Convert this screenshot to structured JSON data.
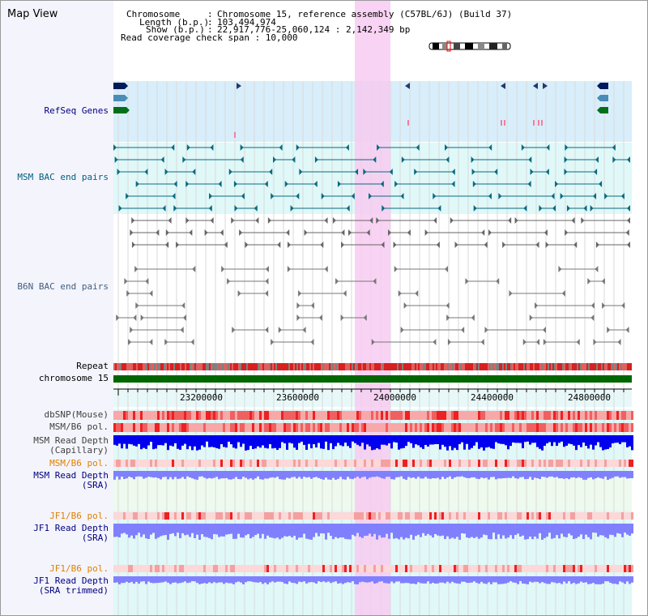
{
  "title": "Map View",
  "header": {
    "rows": [
      {
        "key": "Chromosome",
        "value": "Chromosome 15, reference assembly (C57BL/6J) (Build 37)"
      },
      {
        "key": "Length (b.p.)",
        "value": "103,494,974"
      },
      {
        "key": "Show (b.p.)",
        "value": "22,917,776-25,060,124 : 2,142,349 bp"
      }
    ],
    "separator": ":",
    "coverage": "Read coverage check span : 10,000"
  },
  "labels": {
    "refseq": "RefSeq Genes",
    "msm_bac": "MSM BAC end pairs",
    "b6n_bac": "B6N BAC end pairs",
    "repeat": "Repeat",
    "chromosome": "chromosome 15",
    "dbsnp": "dbSNP(Mouse)",
    "msm_pol": "MSM/B6 pol.",
    "msm_depth_cap_1": "MSM Read Depth",
    "msm_depth_cap_2": "(Capillary)",
    "msm_pol_sra": "MSM/B6 pol.",
    "msm_depth_sra_1": "MSM Read Depth",
    "msm_depth_sra_2": "(SRA)",
    "jf1_pol": "JF1/B6 pol.",
    "jf1_depth_1": "JF1 Read Depth",
    "jf1_depth_2": "(SRA)",
    "jf1_pol_trim": "JF1/B6 pol.",
    "jf1_depth_trim_1": "JF1 Read Depth",
    "jf1_depth_trim_2": "(SRA trimmed)"
  },
  "axis": {
    "ticks": [
      "23200000",
      "23600000",
      "24000000",
      "24400000",
      "24800000"
    ]
  },
  "colors": {
    "highlight": "#f7c8f0",
    "refseq_bg": "#d8eefa",
    "msm_bg": "#e0f8f8",
    "navy_label": "#000080",
    "orange_label": "#e08000",
    "teal_label": "#006080",
    "chrom_green": "#006600",
    "depth_blue": "#0000ee",
    "depth_lavender": "#8080ff"
  }
}
